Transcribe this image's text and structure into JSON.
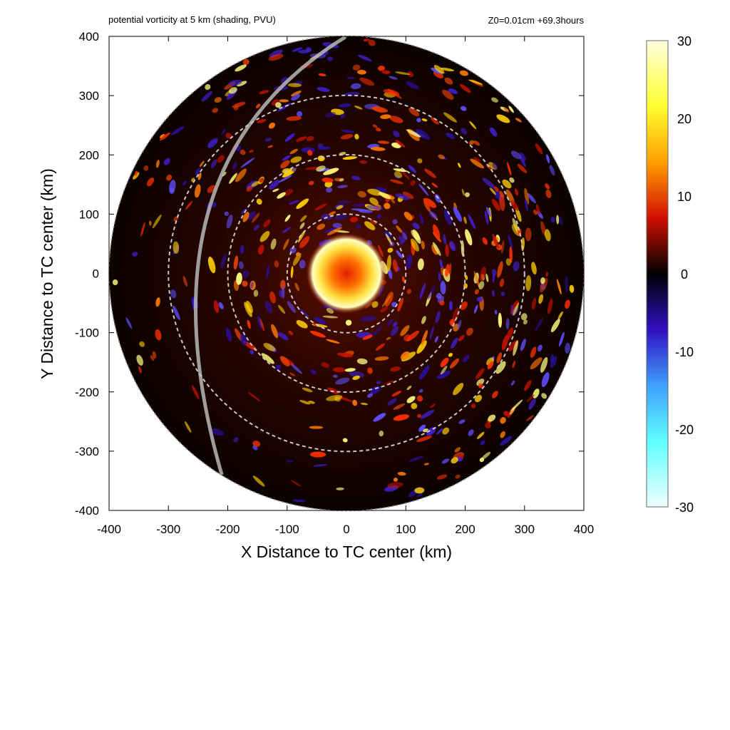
{
  "chart_data": {
    "type": "heatmap",
    "title": "potential vorticity at 5 km (shading, PVU)",
    "subtitle": "Z0=0.01cm  +69.3hours",
    "xlabel": "X Distance to TC center (km)",
    "ylabel": "Y Distance to TC center (km)",
    "xlim": [
      -400,
      400
    ],
    "ylim": [
      -400,
      400
    ],
    "xticks": [
      -400,
      -300,
      -200,
      -100,
      0,
      100,
      200,
      300,
      400
    ],
    "yticks": [
      -400,
      -300,
      -200,
      -100,
      0,
      100,
      200,
      300,
      400
    ],
    "domain_radius_km": 400,
    "range_rings_km": [
      100,
      200,
      300
    ],
    "colorbar": {
      "range": [
        -30,
        30
      ],
      "ticks": [
        30,
        20,
        10,
        0,
        -10,
        -20,
        -30
      ],
      "colors": [
        "#ffffe0",
        "#ffff30",
        "#ffa000",
        "#e01800",
        "#000000",
        "#3010c0",
        "#40a0ff",
        "#60ffff",
        "#f0ffff"
      ]
    },
    "feature_estimates": {
      "core_pv_max_approx": 30,
      "core_radius_km_approx": 50
    }
  }
}
